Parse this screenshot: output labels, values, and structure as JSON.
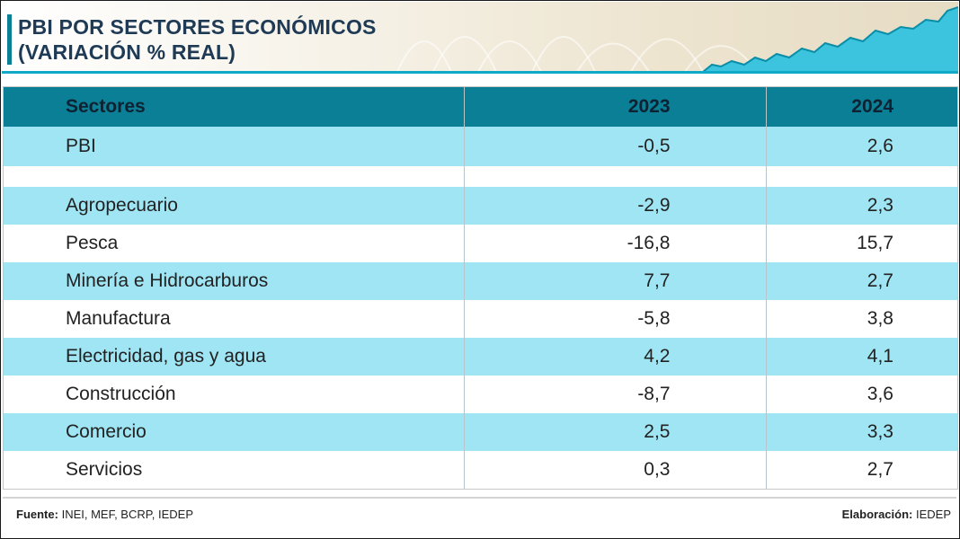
{
  "title_line1": "PBI POR SECTORES ECONÓMICOS",
  "title_line2": "(VARIACIÓN % REAL)",
  "colors": {
    "header_bg": "#0a7f95",
    "row_alt": "#9fe5f3",
    "title_text": "#1e3a55",
    "accent": "#11a9c8"
  },
  "chart_data": {
    "type": "table",
    "columns": [
      "Sectores",
      "2023",
      "2024"
    ],
    "rows": [
      {
        "sector": "PBI",
        "v2023": "-0,5",
        "v2024": "2,6"
      },
      {
        "sector": "Agropecuario",
        "v2023": "-2,9",
        "v2024": "2,3"
      },
      {
        "sector": "Pesca",
        "v2023": "-16,8",
        "v2024": "15,7"
      },
      {
        "sector": "Minería e Hidrocarburos",
        "v2023": "7,7",
        "v2024": "2,7"
      },
      {
        "sector": "Manufactura",
        "v2023": "-5,8",
        "v2024": "3,8"
      },
      {
        "sector": "Electricidad, gas y agua",
        "v2023": "4,2",
        "v2024": "4,1"
      },
      {
        "sector": "Construcción",
        "v2023": "-8,7",
        "v2024": "3,6"
      },
      {
        "sector": "Comercio",
        "v2023": "2,5",
        "v2024": "3,3"
      },
      {
        "sector": "Servicios",
        "v2023": "0,3",
        "v2024": "2,7"
      }
    ]
  },
  "footer": {
    "source_label": "Fuente:",
    "source_text": "INEI, MEF, BCRP, IEDEP",
    "credit_label": "Elaboración:",
    "credit_text": "IEDEP"
  }
}
